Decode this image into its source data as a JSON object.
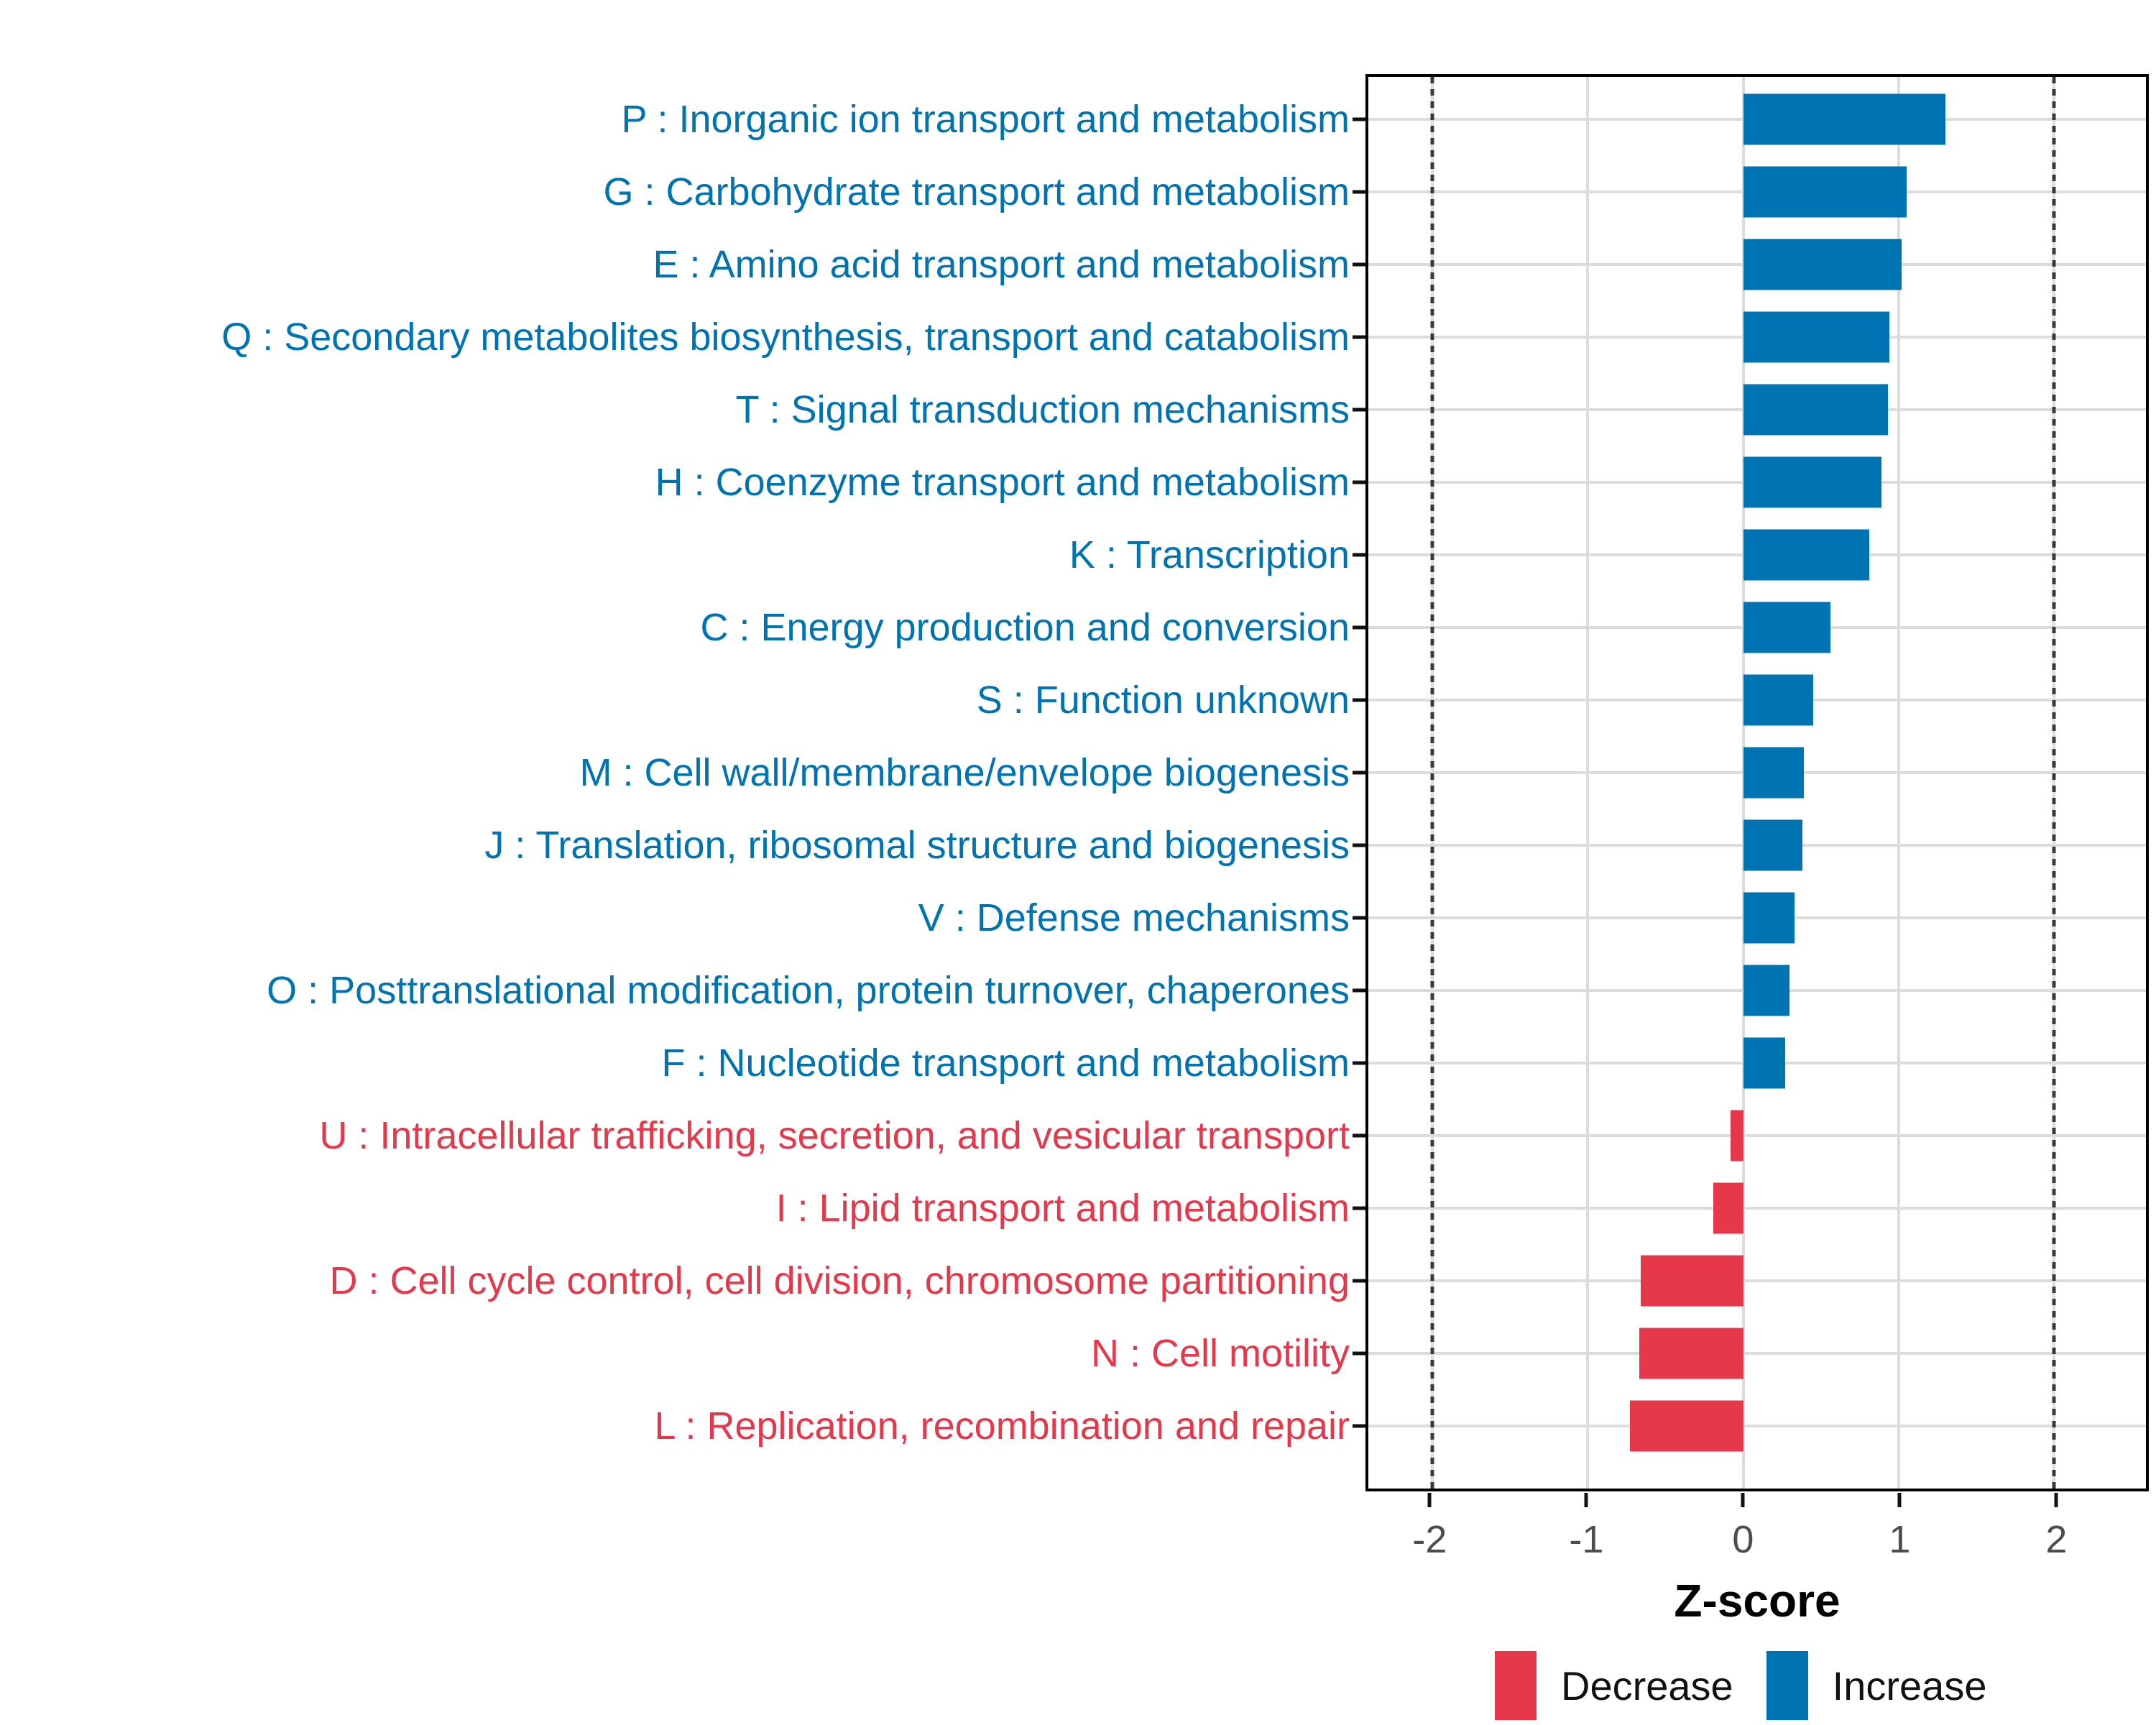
{
  "colors": {
    "increase": "#0073B3",
    "decrease": "#E7384B",
    "grid": "#DCDCDC",
    "refline": "#3A3A3A",
    "axis_text": "#4D4D4D",
    "panel_border": "#000000"
  },
  "chart_data": {
    "type": "bar",
    "orientation": "horizontal",
    "title": "",
    "xlabel": "Z-score",
    "ylabel": "",
    "xlim": [
      -2.41,
      2.59
    ],
    "x_ticks": [
      -2,
      -1,
      0,
      1,
      2
    ],
    "x_tick_labels": [
      "-2",
      "-1",
      "0",
      "1",
      "2"
    ],
    "reference_lines": [
      -2,
      2
    ],
    "grid": "on",
    "legend_position": "bottom-right",
    "legend": [
      {
        "label": "Decrease",
        "color_key": "decrease"
      },
      {
        "label": "Increase",
        "color_key": "increase"
      }
    ],
    "categories": [
      "P : Inorganic ion transport and metabolism",
      "G : Carbohydrate transport and metabolism",
      "E : Amino acid transport and metabolism",
      "Q : Secondary metabolites biosynthesis, transport and catabolism",
      "T : Signal transduction mechanisms",
      "H : Coenzyme transport and metabolism",
      "K : Transcription",
      "C : Energy production and conversion",
      "S : Function unknown",
      "M : Cell wall/membrane/envelope biogenesis",
      "J : Translation, ribosomal structure and biogenesis",
      "V : Defense mechanisms",
      "O : Posttranslational modification, protein turnover, chaperones",
      "F : Nucleotide transport and metabolism",
      "U : Intracellular trafficking, secretion, and vesicular transport",
      "I : Lipid transport and metabolism",
      "D : Cell cycle control, cell division, chromosome partitioning",
      "N : Cell motility",
      "L : Replication, recombination and repair"
    ],
    "values": [
      1.3,
      1.05,
      1.02,
      0.94,
      0.93,
      0.89,
      0.81,
      0.56,
      0.45,
      0.39,
      0.38,
      0.33,
      0.3,
      0.27,
      -0.08,
      -0.19,
      -0.66,
      -0.67,
      -0.73
    ],
    "direction": [
      "increase",
      "increase",
      "increase",
      "increase",
      "increase",
      "increase",
      "increase",
      "increase",
      "increase",
      "increase",
      "increase",
      "increase",
      "increase",
      "increase",
      "decrease",
      "decrease",
      "decrease",
      "decrease",
      "decrease"
    ]
  }
}
